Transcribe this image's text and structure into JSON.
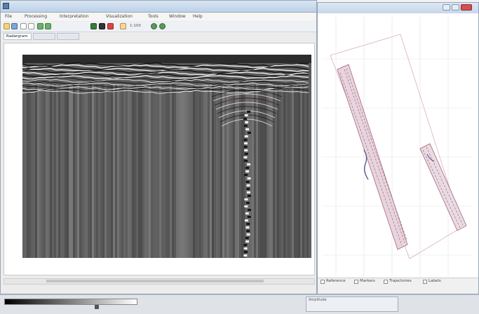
{
  "main_window": {
    "title": "",
    "menu": [
      "File",
      "Processing",
      "Interpretation",
      "Visualization",
      "Tools",
      "Window",
      "Help"
    ],
    "toolbar": {
      "zoom_label": "1:100",
      "gain_label": ""
    },
    "tabs": [
      "Radargram",
      "",
      ""
    ],
    "y_ticks": [
      "",
      "",
      "",
      "",
      "",
      "",
      "",
      "",
      "",
      "",
      "",
      "",
      "",
      "",
      "",
      "",
      ""
    ],
    "x_ticks": [
      "",
      "",
      "",
      "",
      "",
      "",
      "",
      "",
      "",
      "",
      "",
      "",
      "",
      "",
      "",
      "",
      "",
      "",
      "",
      "",
      "",
      "",
      "",
      "",
      ""
    ]
  },
  "map_window": {
    "title": "",
    "checkboxes": [
      "Reference",
      "Markers",
      "Trajectories",
      "Labels"
    ],
    "coords": ""
  },
  "bottom_bar": {
    "range_title": "Amplitude",
    "range_a": "",
    "range_b": "",
    "range_c": ""
  },
  "colors": {
    "titlebar": "#c6d6ea",
    "radargram_bg": "#555555",
    "track_line": "#b06070"
  }
}
